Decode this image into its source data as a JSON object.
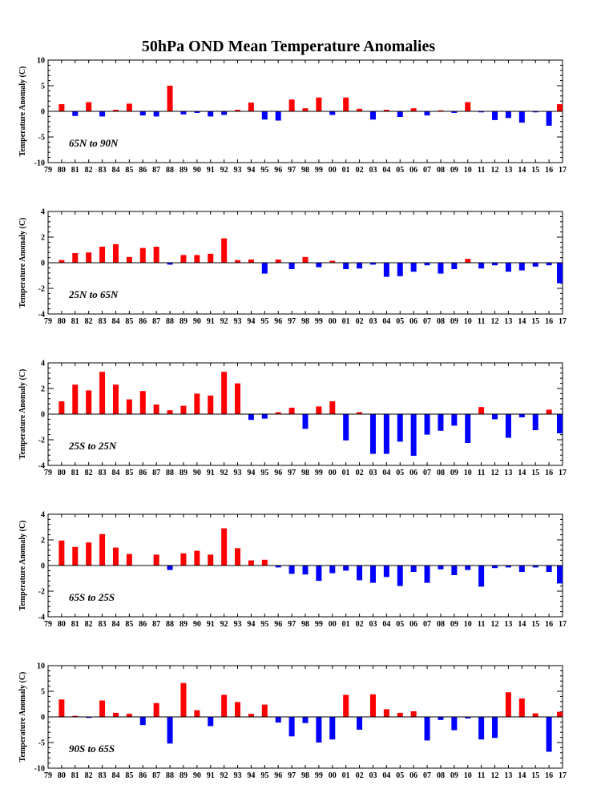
{
  "title": "50hPa OND Mean Temperature Anomalies",
  "colors": {
    "positive": "#ff0000",
    "negative": "#0000ff",
    "axis": "#000000"
  },
  "chart_data": [
    {
      "type": "bar",
      "title": "50hPa OND Mean Temperature Anomalies",
      "region": "65N to 90N",
      "ylabel": "Temperature Anomaly (C)",
      "ylim": [
        -10,
        10
      ],
      "yticks": [
        "-10",
        "-5",
        "0",
        "5",
        "10"
      ],
      "xticks": [
        "79",
        "80",
        "81",
        "82",
        "83",
        "84",
        "85",
        "86",
        "87",
        "88",
        "89",
        "90",
        "91",
        "92",
        "93",
        "94",
        "95",
        "96",
        "97",
        "98",
        "99",
        "00",
        "01",
        "02",
        "03",
        "04",
        "05",
        "06",
        "07",
        "08",
        "09",
        "10",
        "11",
        "12",
        "13",
        "14",
        "15",
        "16",
        "17"
      ],
      "years": [
        1980,
        1981,
        1982,
        1983,
        1984,
        1985,
        1986,
        1987,
        1988,
        1989,
        1990,
        1991,
        1992,
        1993,
        1994,
        1995,
        1996,
        1997,
        1998,
        1999,
        2000,
        2001,
        2002,
        2003,
        2004,
        2005,
        2006,
        2007,
        2008,
        2009,
        2010,
        2011,
        2012,
        2013,
        2014,
        2015,
        2016,
        2017
      ],
      "values": [
        1.4,
        -0.9,
        1.8,
        -1.0,
        0.3,
        1.5,
        -0.8,
        -1.0,
        5.0,
        -0.6,
        -0.3,
        -1.0,
        -0.7,
        0.3,
        1.7,
        -1.6,
        -1.8,
        2.3,
        0.6,
        2.7,
        -0.7,
        2.7,
        0.5,
        -1.6,
        0.3,
        -1.1,
        0.6,
        -0.8,
        0.2,
        -0.3,
        1.8,
        -0.2,
        -1.7,
        -1.3,
        -2.2,
        -0.2,
        -2.8,
        1.4
      ]
    },
    {
      "type": "bar",
      "region": "25N to 65N",
      "ylabel": "Temperature Anomaly (C)",
      "ylim": [
        -4,
        4
      ],
      "yticks": [
        "-4",
        "-2",
        "0",
        "2",
        "4"
      ],
      "xticks": [
        "79",
        "80",
        "81",
        "82",
        "83",
        "84",
        "85",
        "86",
        "87",
        "88",
        "89",
        "90",
        "91",
        "92",
        "93",
        "94",
        "95",
        "96",
        "97",
        "98",
        "99",
        "00",
        "01",
        "02",
        "03",
        "04",
        "05",
        "06",
        "07",
        "08",
        "09",
        "10",
        "11",
        "12",
        "13",
        "14",
        "15",
        "16",
        "17"
      ],
      "years": [
        1980,
        1981,
        1982,
        1983,
        1984,
        1985,
        1986,
        1987,
        1988,
        1989,
        1990,
        1991,
        1992,
        1993,
        1994,
        1995,
        1996,
        1997,
        1998,
        1999,
        2000,
        2001,
        2002,
        2003,
        2004,
        2005,
        2006,
        2007,
        2008,
        2009,
        2010,
        2011,
        2012,
        2013,
        2014,
        2015,
        2016,
        2017
      ],
      "values": [
        0.2,
        0.75,
        0.8,
        1.25,
        1.45,
        0.45,
        1.15,
        1.25,
        -0.15,
        0.6,
        0.6,
        0.7,
        1.9,
        0.2,
        0.25,
        -0.85,
        0.25,
        -0.5,
        0.45,
        -0.35,
        0.15,
        -0.5,
        -0.45,
        -0.15,
        -1.1,
        -1.05,
        -0.7,
        -0.2,
        -0.85,
        -0.5,
        0.3,
        -0.45,
        -0.2,
        -0.7,
        -0.6,
        -0.3,
        -0.2,
        -1.6
      ]
    },
    {
      "type": "bar",
      "region": "25S to 25N",
      "ylabel": "Temperature Anomaly (C)",
      "ylim": [
        -4,
        4
      ],
      "yticks": [
        "-4",
        "-2",
        "0",
        "2",
        "4"
      ],
      "xticks": [
        "79",
        "80",
        "81",
        "82",
        "83",
        "84",
        "85",
        "86",
        "87",
        "88",
        "89",
        "90",
        "91",
        "92",
        "93",
        "94",
        "95",
        "96",
        "97",
        "98",
        "99",
        "00",
        "01",
        "02",
        "03",
        "04",
        "05",
        "06",
        "07",
        "08",
        "09",
        "10",
        "11",
        "12",
        "13",
        "14",
        "15",
        "16",
        "17"
      ],
      "years": [
        1980,
        1981,
        1982,
        1983,
        1984,
        1985,
        1986,
        1987,
        1988,
        1989,
        1990,
        1991,
        1992,
        1993,
        1994,
        1995,
        1996,
        1997,
        1998,
        1999,
        2000,
        2001,
        2002,
        2003,
        2004,
        2005,
        2006,
        2007,
        2008,
        2009,
        2010,
        2011,
        2012,
        2013,
        2014,
        2015,
        2016,
        2017
      ],
      "values": [
        1.0,
        2.3,
        1.85,
        3.3,
        2.3,
        1.15,
        1.8,
        0.75,
        0.3,
        0.65,
        1.6,
        1.45,
        3.3,
        2.4,
        -0.45,
        -0.35,
        0.15,
        0.5,
        -1.15,
        0.6,
        1.0,
        -2.05,
        0.15,
        -3.1,
        -3.1,
        -2.15,
        -3.25,
        -1.6,
        -1.3,
        -0.9,
        -2.25,
        0.55,
        -0.4,
        -1.85,
        -0.25,
        -1.25,
        0.35,
        -1.5
      ]
    },
    {
      "type": "bar",
      "region": "65S to 25S",
      "ylabel": "Temperature Anomaly (C)",
      "ylim": [
        -4,
        4
      ],
      "yticks": [
        "-4",
        "-2",
        "0",
        "2",
        "4"
      ],
      "xticks": [
        "79",
        "80",
        "81",
        "82",
        "83",
        "84",
        "85",
        "86",
        "87",
        "88",
        "89",
        "90",
        "91",
        "92",
        "93",
        "94",
        "95",
        "96",
        "97",
        "98",
        "99",
        "00",
        "01",
        "02",
        "03",
        "04",
        "05",
        "06",
        "07",
        "08",
        "09",
        "10",
        "11",
        "12",
        "13",
        "14",
        "15",
        "16",
        "17"
      ],
      "years": [
        1980,
        1981,
        1982,
        1983,
        1984,
        1985,
        1986,
        1987,
        1988,
        1989,
        1990,
        1991,
        1992,
        1993,
        1994,
        1995,
        1996,
        1997,
        1998,
        1999,
        2000,
        2001,
        2002,
        2003,
        2004,
        2005,
        2006,
        2007,
        2008,
        2009,
        2010,
        2011,
        2012,
        2013,
        2014,
        2015,
        2016,
        2017
      ],
      "values": [
        1.95,
        1.45,
        1.8,
        2.45,
        1.4,
        0.9,
        0.0,
        0.85,
        -0.35,
        0.95,
        1.15,
        0.85,
        2.9,
        1.35,
        0.4,
        0.45,
        -0.15,
        -0.65,
        -0.7,
        -1.2,
        -0.6,
        -0.4,
        -1.15,
        -1.35,
        -0.9,
        -1.6,
        -0.5,
        -1.35,
        -0.3,
        -0.75,
        -0.35,
        -1.65,
        -0.2,
        -0.15,
        -0.5,
        -0.15,
        -0.5,
        -1.4
      ]
    },
    {
      "type": "bar",
      "region": "90S to 65S",
      "ylabel": "Temperature Anomaly (C)",
      "ylim": [
        -10,
        10
      ],
      "yticks": [
        "-10",
        "-5",
        "0",
        "5",
        "10"
      ],
      "xticks": [
        "79",
        "80",
        "81",
        "82",
        "83",
        "84",
        "85",
        "86",
        "87",
        "88",
        "89",
        "90",
        "91",
        "92",
        "93",
        "94",
        "95",
        "96",
        "97",
        "98",
        "99",
        "00",
        "01",
        "02",
        "03",
        "04",
        "05",
        "06",
        "07",
        "08",
        "09",
        "10",
        "11",
        "12",
        "13",
        "14",
        "15",
        "16",
        "17"
      ],
      "years": [
        1980,
        1981,
        1982,
        1983,
        1984,
        1985,
        1986,
        1987,
        1988,
        1989,
        1990,
        1991,
        1992,
        1993,
        1994,
        1995,
        1996,
        1997,
        1998,
        1999,
        2000,
        2001,
        2002,
        2003,
        2004,
        2005,
        2006,
        2007,
        2008,
        2009,
        2010,
        2011,
        2012,
        2013,
        2014,
        2015,
        2016,
        2017
      ],
      "values": [
        3.4,
        0.2,
        -0.2,
        3.2,
        0.8,
        0.6,
        -1.6,
        2.7,
        -5.2,
        6.6,
        1.3,
        -1.8,
        4.3,
        2.9,
        0.6,
        2.4,
        -1.1,
        -3.8,
        -1.2,
        -5.0,
        -4.4,
        4.3,
        -2.5,
        4.4,
        1.5,
        0.8,
        1.1,
        -4.6,
        -0.6,
        -2.6,
        -0.3,
        -4.4,
        -4.1,
        4.8,
        3.6,
        0.7,
        -6.8,
        1.0
      ]
    }
  ]
}
